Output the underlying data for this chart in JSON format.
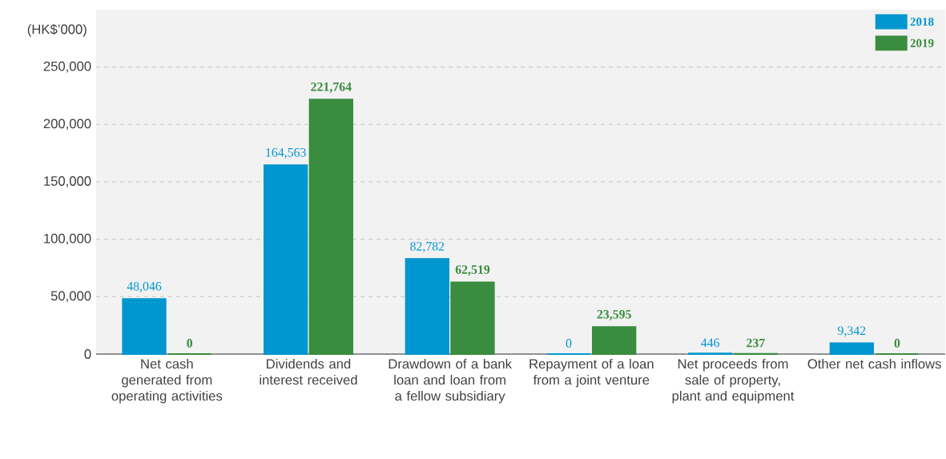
{
  "chart_data": {
    "type": "bar",
    "ylabel": "(HK$’000)",
    "categories": [
      "Net cash generated from operating activities",
      "Dividends and interest received",
      "Drawdown of a bank loan and loan from a fellow subsidiary",
      "Repayment of a loan from a joint venture",
      "Net proceeds from sale of property, plant and equipment",
      "Other net cash inflows"
    ],
    "series": [
      {
        "name": "2018",
        "color": "#0096cf",
        "values": [
          48046,
          164563,
          82782,
          0,
          446,
          9342
        ],
        "value_labels": [
          "48,046",
          "164,563",
          "82,782",
          "0",
          "446",
          "9,342"
        ]
      },
      {
        "name": "2019",
        "color": "#3a8c3f",
        "values": [
          0,
          221764,
          62519,
          23595,
          237,
          0
        ],
        "value_labels": [
          "0",
          "221,764",
          "62,519",
          "23,595",
          "237",
          "0"
        ]
      }
    ],
    "ylim": [
      0,
      300000
    ],
    "yticks": [
      0,
      {
        "value": 50000,
        "label": "50,000"
      },
      {
        "value": 100000,
        "label": "100,000"
      },
      {
        "value": 150000,
        "label": "150,000"
      },
      {
        "value": 200000,
        "label": "200,000"
      },
      {
        "value": 250000,
        "label": "250,000"
      }
    ],
    "grid": "y",
    "legend": "top right"
  }
}
